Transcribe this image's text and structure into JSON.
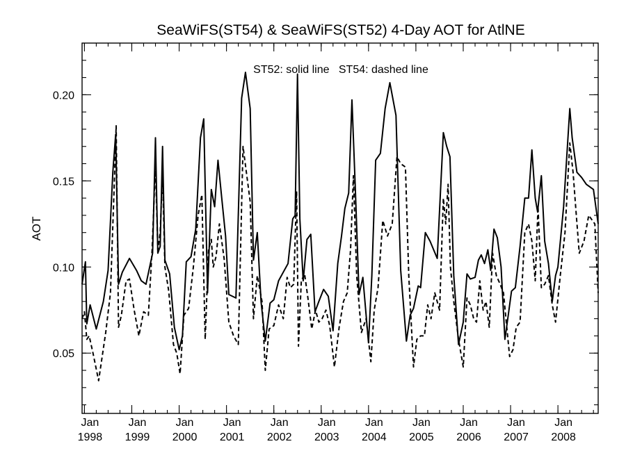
{
  "chart_data": {
    "type": "line",
    "title": "SeaWiFS(ST54) & SeaWiFS(ST52) 4-Day AOT for AtlNE",
    "annotation": "ST52: solid line   ST54: dashed line",
    "xlabel": "",
    "ylabel": "AOT",
    "xlim": [
      1997.95,
      2008.85
    ],
    "ylim": [
      0.015,
      0.23
    ],
    "x_ticks": [
      {
        "x": 1998,
        "month": "Jan",
        "year": "1998"
      },
      {
        "x": 1999,
        "month": "Jan",
        "year": "1999"
      },
      {
        "x": 2000,
        "month": "Jan",
        "year": "2000"
      },
      {
        "x": 2001,
        "month": "Jan",
        "year": "2001"
      },
      {
        "x": 2002,
        "month": "Jan",
        "year": "2002"
      },
      {
        "x": 2003,
        "month": "Jan",
        "year": "2003"
      },
      {
        "x": 2004,
        "month": "Jan",
        "year": "2004"
      },
      {
        "x": 2005,
        "month": "Jan",
        "year": "2005"
      },
      {
        "x": 2006,
        "month": "Jan",
        "year": "2006"
      },
      {
        "x": 2007,
        "month": "Jan",
        "year": "2007"
      },
      {
        "x": 2008,
        "month": "Jan",
        "year": "2008"
      }
    ],
    "y_ticks": [
      {
        "value": 0.05,
        "label": "0.05"
      },
      {
        "value": 0.1,
        "label": "0.10"
      },
      {
        "value": 0.15,
        "label": "0.15"
      },
      {
        "value": 0.2,
        "label": "0.20"
      }
    ],
    "grid": false,
    "series": [
      {
        "style": "solid",
        "x": [
          1997.95,
          1998.02,
          1998.05,
          1998.12,
          1998.25,
          1998.4,
          1998.5,
          1998.6,
          1998.66,
          1998.72,
          1998.8,
          1998.95,
          1999.1,
          1999.2,
          1999.3,
          1999.44,
          1999.5,
          1999.55,
          1999.6,
          1999.65,
          1999.7,
          1999.8,
          1999.9,
          2000.0,
          2000.07,
          2000.15,
          2000.25,
          2000.35,
          2000.45,
          2000.52,
          2000.6,
          2000.68,
          2000.75,
          2000.82,
          2000.9,
          2000.98,
          2001.05,
          2001.2,
          2001.32,
          2001.4,
          2001.5,
          2001.57,
          2001.65,
          2001.73,
          2001.82,
          2001.92,
          2002.0,
          2002.1,
          2002.2,
          2002.3,
          2002.4,
          2002.45,
          2002.5,
          2002.55,
          2002.62,
          2002.7,
          2002.78,
          2002.87,
          2002.95,
          2003.05,
          2003.15,
          2003.25,
          2003.35,
          2003.43,
          2003.5,
          2003.58,
          2003.65,
          2003.72,
          2003.8,
          2003.88,
          2004.0,
          2004.07,
          2004.15,
          2004.25,
          2004.35,
          2004.45,
          2004.58,
          2004.68,
          2004.8,
          2004.88,
          2004.95,
          2005.05,
          2005.1,
          2005.2,
          2005.3,
          2005.45,
          2005.58,
          2005.65,
          2005.72,
          2005.8,
          2005.9,
          2006.0,
          2006.08,
          2006.15,
          2006.25,
          2006.32,
          2006.38,
          2006.45,
          2006.52,
          2006.58,
          2006.65,
          2006.72,
          2006.8,
          2006.88,
          2006.95,
          2007.02,
          2007.1,
          2007.2,
          2007.3,
          2007.38,
          2007.45,
          2007.52,
          2007.57,
          2007.65,
          2007.72,
          2007.8,
          2007.88,
          2007.95,
          2008.0,
          2008.12,
          2008.25,
          2008.3,
          2008.4,
          2008.5,
          2008.6,
          2008.75,
          2008.85
        ],
        "y": [
          0.09,
          0.103,
          0.067,
          0.078,
          0.064,
          0.08,
          0.098,
          0.155,
          0.177,
          0.09,
          0.097,
          0.105,
          0.098,
          0.092,
          0.09,
          0.108,
          0.175,
          0.108,
          0.112,
          0.17,
          0.104,
          0.096,
          0.065,
          0.052,
          0.06,
          0.103,
          0.106,
          0.122,
          0.175,
          0.186,
          0.085,
          0.145,
          0.135,
          0.162,
          0.14,
          0.118,
          0.084,
          0.082,
          0.198,
          0.213,
          0.192,
          0.104,
          0.12,
          0.08,
          0.057,
          0.079,
          0.081,
          0.092,
          0.097,
          0.102,
          0.128,
          0.13,
          0.212,
          0.128,
          0.092,
          0.116,
          0.119,
          0.074,
          0.08,
          0.087,
          0.083,
          0.063,
          0.102,
          0.118,
          0.134,
          0.143,
          0.197,
          0.146,
          0.084,
          0.094,
          0.056,
          0.095,
          0.162,
          0.166,
          0.192,
          0.207,
          0.188,
          0.098,
          0.057,
          0.072,
          0.076,
          0.089,
          0.088,
          0.12,
          0.115,
          0.105,
          0.178,
          0.17,
          0.164,
          0.095,
          0.055,
          0.068,
          0.096,
          0.093,
          0.094,
          0.104,
          0.107,
          0.102,
          0.11,
          0.098,
          0.122,
          0.117,
          0.1,
          0.058,
          0.072,
          0.086,
          0.088,
          0.112,
          0.14,
          0.14,
          0.168,
          0.14,
          0.132,
          0.153,
          0.115,
          0.102,
          0.08,
          0.095,
          0.1,
          0.135,
          0.192,
          0.175,
          0.155,
          0.152,
          0.148,
          0.145,
          0.125
        ]
      },
      {
        "style": "dashed",
        "x": [
          1997.95,
          1998.0,
          1998.05,
          1998.1,
          1998.18,
          1998.3,
          1998.45,
          1998.55,
          1998.62,
          1998.67,
          1998.72,
          1998.78,
          1998.88,
          1998.95,
          1999.05,
          1999.15,
          1999.25,
          1999.35,
          1999.43,
          1999.5,
          1999.55,
          1999.6,
          1999.65,
          1999.7,
          1999.78,
          1999.88,
          1999.95,
          2000.02,
          2000.1,
          2000.2,
          2000.3,
          2000.4,
          2000.48,
          2000.55,
          2000.62,
          2000.68,
          2000.72,
          2000.78,
          2000.85,
          2000.95,
          2001.05,
          2001.15,
          2001.25,
          2001.35,
          2001.42,
          2001.5,
          2001.57,
          2001.65,
          2001.75,
          2001.82,
          2001.9,
          2002.0,
          2002.1,
          2002.2,
          2002.28,
          2002.35,
          2002.42,
          2002.48,
          2002.52,
          2002.58,
          2002.65,
          2002.72,
          2002.8,
          2002.88,
          2002.95,
          2003.02,
          2003.1,
          2003.18,
          2003.28,
          2003.38,
          2003.47,
          2003.55,
          2003.62,
          2003.68,
          2003.75,
          2003.85,
          2003.95,
          2004.05,
          2004.12,
          2004.2,
          2004.3,
          2004.4,
          2004.5,
          2004.6,
          2004.68,
          2004.78,
          2004.85,
          2004.95,
          2005.02,
          2005.1,
          2005.18,
          2005.25,
          2005.32,
          2005.4,
          2005.5,
          2005.58,
          2005.63,
          2005.68,
          2005.73,
          2005.8,
          2005.9,
          2006.0,
          2006.08,
          2006.15,
          2006.22,
          2006.28,
          2006.35,
          2006.42,
          2006.48,
          2006.55,
          2006.62,
          2006.7,
          2006.78,
          2006.85,
          2006.92,
          2006.98,
          2007.05,
          2007.12,
          2007.2,
          2007.3,
          2007.38,
          2007.45,
          2007.52,
          2007.58,
          2007.65,
          2007.72,
          2007.8,
          2007.88,
          2007.95,
          2008.05,
          2008.15,
          2008.25,
          2008.32,
          2008.38,
          2008.45,
          2008.55,
          2008.65,
          2008.78,
          2008.85
        ],
        "y": [
          0.07,
          0.074,
          0.058,
          0.06,
          0.05,
          0.034,
          0.062,
          0.085,
          0.14,
          0.182,
          0.065,
          0.072,
          0.092,
          0.093,
          0.075,
          0.06,
          0.074,
          0.072,
          0.11,
          0.16,
          0.11,
          0.12,
          0.155,
          0.1,
          0.086,
          0.055,
          0.05,
          0.038,
          0.072,
          0.076,
          0.1,
          0.13,
          0.142,
          0.058,
          0.11,
          0.116,
          0.1,
          0.106,
          0.125,
          0.105,
          0.068,
          0.06,
          0.055,
          0.17,
          0.155,
          0.138,
          0.07,
          0.095,
          0.08,
          0.04,
          0.064,
          0.066,
          0.078,
          0.07,
          0.094,
          0.088,
          0.09,
          0.144,
          0.054,
          0.092,
          0.096,
          0.082,
          0.064,
          0.075,
          0.068,
          0.07,
          0.075,
          0.066,
          0.042,
          0.065,
          0.08,
          0.085,
          0.11,
          0.153,
          0.095,
          0.062,
          0.07,
          0.045,
          0.075,
          0.088,
          0.127,
          0.118,
          0.125,
          0.164,
          0.16,
          0.158,
          0.095,
          0.042,
          0.058,
          0.06,
          0.06,
          0.078,
          0.07,
          0.085,
          0.075,
          0.14,
          0.125,
          0.148,
          0.1,
          0.08,
          0.058,
          0.042,
          0.082,
          0.078,
          0.07,
          0.068,
          0.092,
          0.075,
          0.08,
          0.065,
          0.108,
          0.095,
          0.09,
          0.085,
          0.065,
          0.048,
          0.052,
          0.065,
          0.068,
          0.12,
          0.125,
          0.115,
          0.092,
          0.135,
          0.088,
          0.09,
          0.095,
          0.078,
          0.068,
          0.095,
          0.12,
          0.172,
          0.155,
          0.133,
          0.108,
          0.115,
          0.13,
          0.125,
          0.085
        ]
      }
    ]
  }
}
